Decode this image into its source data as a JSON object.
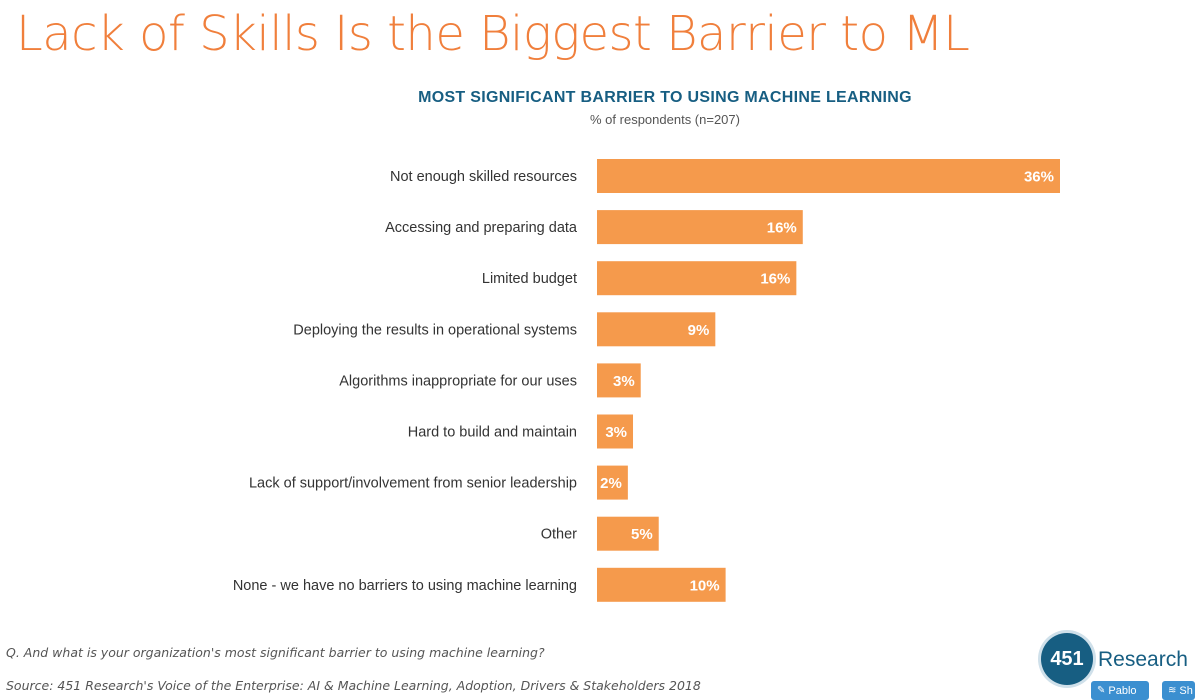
{
  "page": {
    "title": "Lack of Skills Is the Biggest Barrier to ML",
    "question": "Q. And what is your organization's most significant barrier to using machine learning?",
    "source": "Source: 451 Research's Voice of the Enterprise: AI & Machine Learning, Adoption, Drivers & Stakeholders 2018"
  },
  "logo": {
    "number": "451",
    "word": "Research"
  },
  "badges": {
    "pablo_label": "Pablo",
    "share_label": "Sh",
    "pablo_icon": "pencil-icon",
    "share_icon": "layers-icon"
  },
  "colors": {
    "title": "#f07f3c",
    "bar": "#f59a4c",
    "chart_title": "#175e82",
    "logo": "#175e82"
  },
  "chart_data": {
    "type": "bar",
    "orientation": "horizontal",
    "title": "MOST SIGNIFICANT BARRIER TO USING MACHINE LEARNING",
    "subtitle": "% of respondents (n=207)",
    "categories": [
      "Not enough skilled resources",
      "Accessing and preparing data",
      "Limited budget",
      "Deploying the results in operational systems",
      "Algorithms inappropriate for our uses",
      "Hard to build and maintain",
      "Lack of support/involvement from senior leadership",
      "Other",
      "None - we have no barriers to using machine learning"
    ],
    "values": [
      36,
      16,
      16,
      9,
      3,
      3,
      2,
      5,
      10
    ],
    "bar_widths_pct": [
      36,
      16,
      15.5,
      9.2,
      3.4,
      2.8,
      2.4,
      4.8,
      10
    ],
    "value_labels": [
      "36%",
      "16%",
      "16%",
      "9%",
      "3%",
      "3%",
      "2%",
      "5%",
      "10%"
    ],
    "xlim": [
      0,
      36
    ],
    "grid": false,
    "legend": "none"
  }
}
